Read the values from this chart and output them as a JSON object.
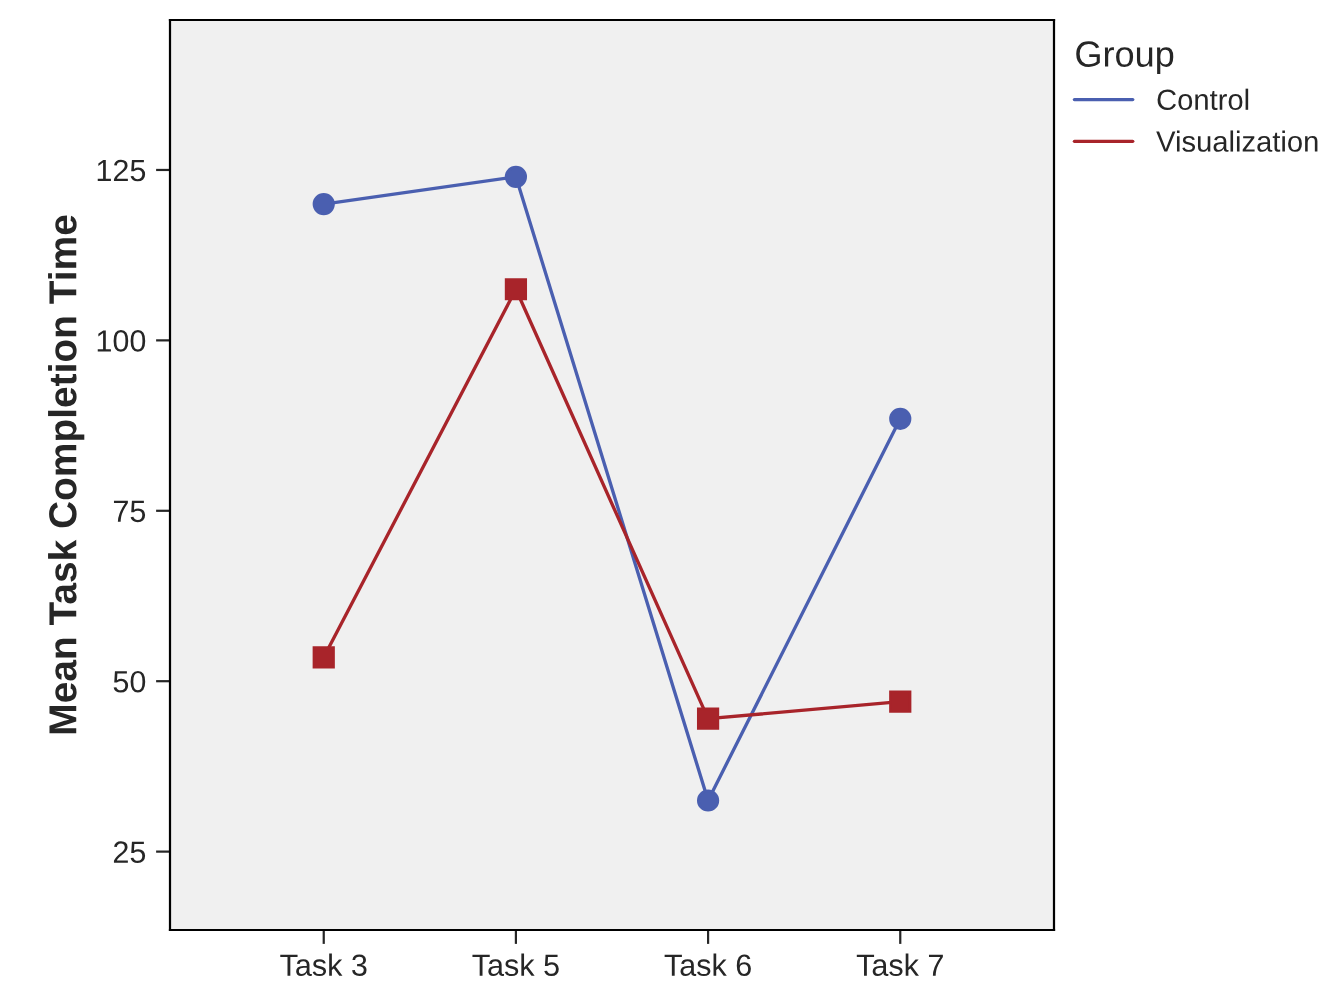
{
  "chart_data": {
    "type": "line",
    "ylabel": "Mean Task Completion Time",
    "legend_title": "Group",
    "categories": [
      "Task 3",
      "Task 5",
      "Task 6",
      "Task 7"
    ],
    "series": [
      {
        "name": "Control",
        "color": "#4a5fb0",
        "marker": "circle",
        "values": [
          120,
          124,
          32.5,
          88.5
        ]
      },
      {
        "name": "Visualization",
        "color": "#a8242a",
        "marker": "square",
        "values": [
          53.5,
          107.5,
          44.5,
          47
        ]
      }
    ],
    "ylim": [
      13.5,
      147
    ],
    "yticks": [
      25,
      50,
      75,
      100,
      125
    ],
    "grid": false,
    "legend": "right",
    "line_style": "solid"
  }
}
